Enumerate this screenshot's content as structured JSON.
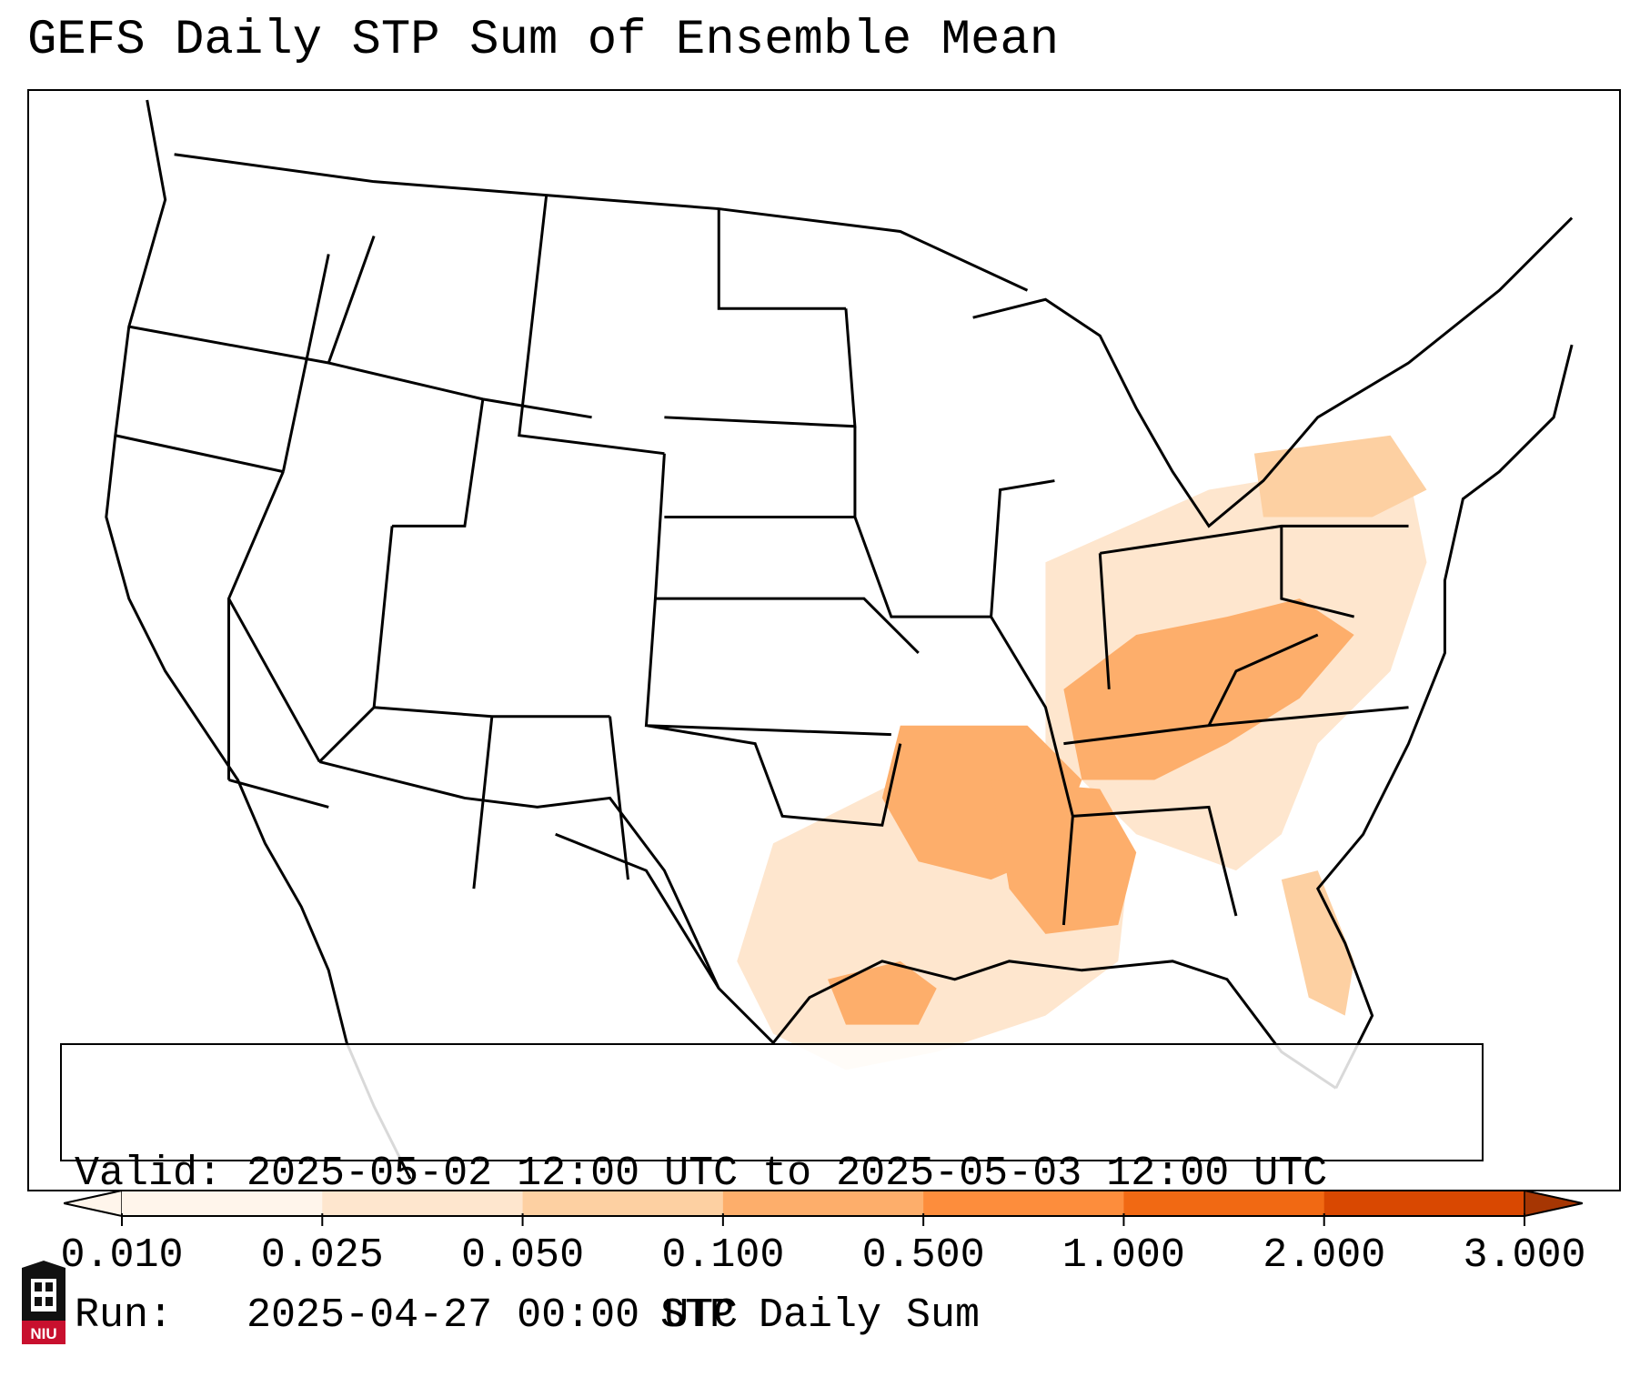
{
  "title": "GEFS Daily STP Sum of Ensemble Mean",
  "info": {
    "valid_label": "Valid:",
    "valid_value": "2025-05-02 12:00 UTC to 2025-05-03 12:00 UTC",
    "run_label": "Run:",
    "run_value": "2025-04-27 00:00 UTC"
  },
  "colorbar": {
    "label": "STP Daily Sum",
    "ticks": [
      "0.010",
      "0.025",
      "0.050",
      "0.100",
      "0.500",
      "1.000",
      "2.000",
      "3.000"
    ],
    "colors": [
      "#fff5eb",
      "#fee6ce",
      "#fdd0a2",
      "#fdae6b",
      "#fd8d3c",
      "#f16913",
      "#d94801",
      "#a63603"
    ],
    "extend": "both"
  },
  "logo": {
    "text": "NIU",
    "colors": {
      "shield": "#111111",
      "banner": "#c8102e"
    }
  }
}
